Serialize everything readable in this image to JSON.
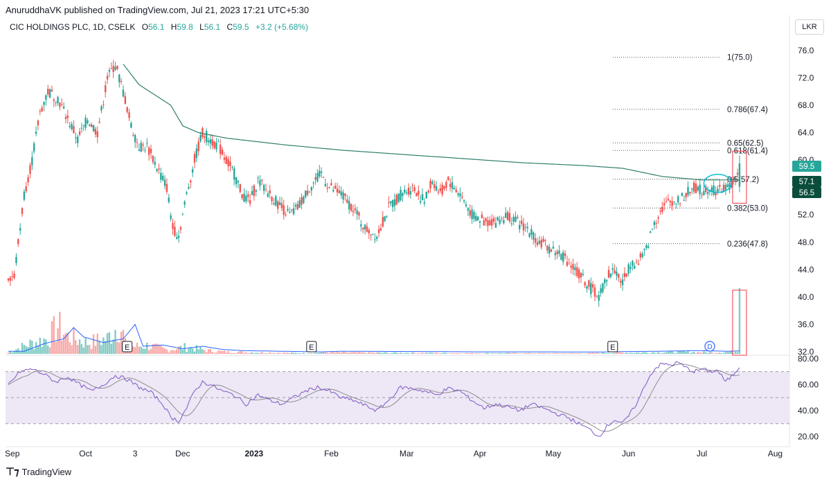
{
  "publisher": "AnuruddhaVK published on TradingView.com, Jul 21, 2023 17:21 UTC+5:30",
  "legend": {
    "symbol": "CIC HOLDINGS PLC, 1D, CSELK",
    "o_label": "O",
    "o": "56.1",
    "h_label": "H",
    "h": "59.8",
    "l_label": "L",
    "l": "56.1",
    "c_label": "C",
    "c": "59.5",
    "change": "+3.2 (+5.68%)"
  },
  "currency": "LKR",
  "footer": "TradingView",
  "colors": {
    "up": "#26a69a",
    "down": "#ef5350",
    "ma": "#2e7d6b",
    "rsi": "#7e57c2",
    "vol_ma": "#2962ff",
    "highlight": "#f23645",
    "annotation": "#00bcd4"
  },
  "chart_data": {
    "type": "candlestick",
    "price_axis": {
      "ticks": [
        "76.0",
        "72.0",
        "68.0",
        "64.0",
        "60.0",
        "56.0",
        "52.0",
        "48.0",
        "44.0",
        "40.0",
        "36.0",
        "32.0"
      ],
      "range": [
        31.5,
        77.5
      ]
    },
    "x_axis": {
      "labels": [
        "Sep",
        "Oct",
        "3",
        "Dec",
        "2023",
        "Feb",
        "Mar",
        "Apr",
        "May",
        "Jun",
        "Jul",
        "Aug"
      ],
      "label_index": [
        2,
        39,
        64,
        88,
        124,
        163,
        201,
        238,
        275,
        313,
        350,
        387
      ]
    },
    "fibonacci": [
      {
        "label": "1(75.0)",
        "value": 75.0
      },
      {
        "label": "0.786(67.4)",
        "value": 67.4
      },
      {
        "label": "0.65(62.5)",
        "value": 62.5
      },
      {
        "label": "0.618(61.4)",
        "value": 61.4
      },
      {
        "label": "0.5(57.2)",
        "value": 57.2
      },
      {
        "label": "0.382(53.0)",
        "value": 53.0
      },
      {
        "label": "0.236(47.8)",
        "value": 47.8
      }
    ],
    "price_badges": [
      {
        "label": "59.5",
        "value": 59.5,
        "color": "#26a69a"
      },
      {
        "label": "57.1",
        "value": 57.1,
        "color": "#0a4d3c"
      },
      {
        "label": "56.5",
        "value": 56.5,
        "color": "#0a4d3c"
      }
    ],
    "earnings_markers": [
      {
        "label": "E",
        "index": 60
      },
      {
        "label": "E",
        "index": 153
      },
      {
        "label": "E",
        "index": 305
      }
    ],
    "dividend_marker": {
      "label": "D",
      "index": 354
    },
    "close_keyframes": [
      [
        0,
        43
      ],
      [
        3,
        43
      ],
      [
        8,
        55
      ],
      [
        12,
        60
      ],
      [
        16,
        67
      ],
      [
        20,
        70
      ],
      [
        25,
        69
      ],
      [
        30,
        66
      ],
      [
        35,
        63
      ],
      [
        40,
        66
      ],
      [
        45,
        64
      ],
      [
        50,
        72
      ],
      [
        54,
        74
      ],
      [
        58,
        70
      ],
      [
        62,
        65
      ],
      [
        66,
        62
      ],
      [
        70,
        62
      ],
      [
        75,
        59
      ],
      [
        80,
        56
      ],
      [
        83,
        50
      ],
      [
        86,
        49
      ],
      [
        90,
        55
      ],
      [
        94,
        60
      ],
      [
        98,
        64
      ],
      [
        102,
        63
      ],
      [
        106,
        62
      ],
      [
        110,
        60
      ],
      [
        114,
        58
      ],
      [
        118,
        55
      ],
      [
        122,
        54
      ],
      [
        126,
        57
      ],
      [
        132,
        55
      ],
      [
        138,
        53
      ],
      [
        142,
        52
      ],
      [
        146,
        53
      ],
      [
        152,
        56
      ],
      [
        158,
        58
      ],
      [
        162,
        56
      ],
      [
        168,
        55
      ],
      [
        174,
        53
      ],
      [
        180,
        50
      ],
      [
        186,
        49
      ],
      [
        192,
        53
      ],
      [
        198,
        55
      ],
      [
        204,
        56
      ],
      [
        210,
        54
      ],
      [
        214,
        57
      ],
      [
        218,
        55
      ],
      [
        222,
        57
      ],
      [
        228,
        55
      ],
      [
        234,
        52
      ],
      [
        240,
        51
      ],
      [
        246,
        51
      ],
      [
        252,
        52
      ],
      [
        256,
        51
      ],
      [
        262,
        50
      ],
      [
        268,
        48
      ],
      [
        274,
        47
      ],
      [
        280,
        46
      ],
      [
        286,
        44
      ],
      [
        292,
        42
      ],
      [
        298,
        40
      ],
      [
        302,
        43
      ],
      [
        306,
        44
      ],
      [
        310,
        42
      ],
      [
        314,
        45
      ],
      [
        318,
        45
      ],
      [
        322,
        47
      ],
      [
        326,
        51
      ],
      [
        330,
        53
      ],
      [
        334,
        54
      ],
      [
        338,
        54
      ],
      [
        342,
        55
      ],
      [
        346,
        56
      ],
      [
        350,
        55.5
      ],
      [
        354,
        56
      ],
      [
        358,
        55.5
      ],
      [
        362,
        56
      ],
      [
        366,
        56.5
      ],
      [
        369,
        59.5
      ]
    ],
    "ma_keyframes": [
      [
        58,
        74
      ],
      [
        66,
        71
      ],
      [
        74,
        69.5
      ],
      [
        82,
        68
      ],
      [
        88,
        65
      ],
      [
        96,
        64
      ],
      [
        110,
        63.2
      ],
      [
        140,
        62.2
      ],
      [
        170,
        61.4
      ],
      [
        200,
        60.8
      ],
      [
        230,
        60.2
      ],
      [
        260,
        59.6
      ],
      [
        290,
        59.2
      ],
      [
        310,
        58.8
      ],
      [
        330,
        57.6
      ],
      [
        350,
        57.1
      ],
      [
        369,
        57.1
      ]
    ],
    "volume_keyframes": [
      [
        0,
        2
      ],
      [
        10,
        14
      ],
      [
        20,
        22
      ],
      [
        25,
        40
      ],
      [
        30,
        25
      ],
      [
        40,
        16
      ],
      [
        50,
        22
      ],
      [
        56,
        45
      ],
      [
        60,
        10
      ],
      [
        70,
        12
      ],
      [
        80,
        6
      ],
      [
        90,
        10
      ],
      [
        100,
        5
      ],
      [
        110,
        3
      ],
      [
        130,
        2
      ],
      [
        150,
        1
      ],
      [
        160,
        2
      ],
      [
        200,
        1.5
      ],
      [
        230,
        1
      ],
      [
        260,
        1
      ],
      [
        290,
        0.8
      ],
      [
        305,
        1.5
      ],
      [
        320,
        2
      ],
      [
        340,
        3
      ],
      [
        355,
        2
      ],
      [
        366,
        3
      ],
      [
        367,
        4
      ],
      [
        368,
        6
      ],
      [
        369,
        95
      ]
    ],
    "rsi_axis": {
      "ticks": [
        "80.00",
        "60.00",
        "40.00",
        "20.00"
      ],
      "range": [
        15,
        82
      ],
      "band": [
        30,
        70
      ]
    },
    "rsi_keyframes": [
      [
        0,
        60
      ],
      [
        6,
        70
      ],
      [
        12,
        72
      ],
      [
        18,
        68
      ],
      [
        24,
        62
      ],
      [
        30,
        66
      ],
      [
        36,
        60
      ],
      [
        42,
        55
      ],
      [
        48,
        60
      ],
      [
        54,
        67
      ],
      [
        60,
        64
      ],
      [
        66,
        58
      ],
      [
        72,
        54
      ],
      [
        78,
        45
      ],
      [
        82,
        35
      ],
      [
        86,
        32
      ],
      [
        90,
        42
      ],
      [
        94,
        55
      ],
      [
        98,
        62
      ],
      [
        102,
        60
      ],
      [
        108,
        55
      ],
      [
        114,
        52
      ],
      [
        120,
        45
      ],
      [
        126,
        52
      ],
      [
        132,
        48
      ],
      [
        138,
        45
      ],
      [
        144,
        50
      ],
      [
        150,
        55
      ],
      [
        156,
        58
      ],
      [
        162,
        55
      ],
      [
        168,
        50
      ],
      [
        174,
        48
      ],
      [
        180,
        44
      ],
      [
        186,
        40
      ],
      [
        192,
        48
      ],
      [
        198,
        58
      ],
      [
        204,
        57
      ],
      [
        210,
        55
      ],
      [
        216,
        52
      ],
      [
        222,
        57
      ],
      [
        228,
        55
      ],
      [
        234,
        48
      ],
      [
        240,
        42
      ],
      [
        246,
        45
      ],
      [
        252,
        43
      ],
      [
        258,
        40
      ],
      [
        264,
        45
      ],
      [
        270,
        42
      ],
      [
        276,
        38
      ],
      [
        282,
        35
      ],
      [
        288,
        30
      ],
      [
        294,
        25
      ],
      [
        298,
        20
      ],
      [
        302,
        28
      ],
      [
        306,
        33
      ],
      [
        310,
        30
      ],
      [
        314,
        38
      ],
      [
        318,
        48
      ],
      [
        322,
        62
      ],
      [
        326,
        72
      ],
      [
        330,
        76
      ],
      [
        334,
        75
      ],
      [
        338,
        77
      ],
      [
        342,
        73
      ],
      [
        346,
        70
      ],
      [
        350,
        72
      ],
      [
        354,
        70
      ],
      [
        358,
        71
      ],
      [
        362,
        62
      ],
      [
        366,
        68
      ],
      [
        369,
        74
      ]
    ]
  }
}
